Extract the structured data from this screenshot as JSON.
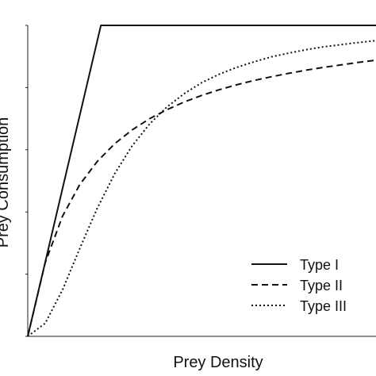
{
  "chart_data": {
    "type": "line",
    "title": "",
    "xlabel": "Prey Density",
    "ylabel": "Prey Consumption",
    "xlim": [
      0,
      1
    ],
    "ylim": [
      0,
      1
    ],
    "grid": false,
    "legend_position": "bottom-right",
    "series": [
      {
        "name": "Type I",
        "style": "solid",
        "x": [
          0,
          0.21,
          1.0
        ],
        "y": [
          0,
          1.0,
          1.0
        ]
      },
      {
        "name": "Type II",
        "style": "dashed",
        "x": [
          0,
          0.05,
          0.1,
          0.15,
          0.2,
          0.25,
          0.3,
          0.35,
          0.4,
          0.45,
          0.5,
          0.55,
          0.6,
          0.65,
          0.7,
          0.75,
          0.8,
          0.85,
          0.9,
          0.95,
          1.0
        ],
        "y": [
          0,
          0.237,
          0.387,
          0.489,
          0.563,
          0.62,
          0.664,
          0.7,
          0.729,
          0.754,
          0.775,
          0.793,
          0.809,
          0.823,
          0.835,
          0.846,
          0.856,
          0.865,
          0.873,
          0.881,
          0.888
        ]
      },
      {
        "name": "Type III",
        "style": "dotted",
        "x": [
          0,
          0.05,
          0.1,
          0.15,
          0.2,
          0.25,
          0.3,
          0.35,
          0.4,
          0.45,
          0.5,
          0.55,
          0.6,
          0.65,
          0.7,
          0.75,
          0.8,
          0.85,
          0.9,
          0.95,
          1.0
        ],
        "y": [
          0,
          0.042,
          0.15,
          0.284,
          0.413,
          0.524,
          0.613,
          0.683,
          0.738,
          0.781,
          0.816,
          0.843,
          0.865,
          0.883,
          0.899,
          0.911,
          0.922,
          0.931,
          0.938,
          0.945,
          0.951
        ]
      }
    ]
  }
}
